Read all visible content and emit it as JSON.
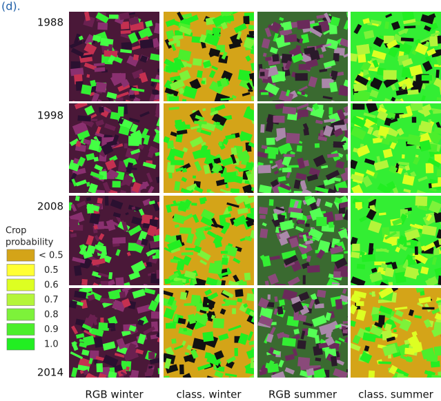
{
  "header": {
    "label": "(d)."
  },
  "years": [
    "1988",
    "1998",
    "2008",
    "2014"
  ],
  "columns": [
    "RGB winter",
    "class. winter",
    "RGB summer",
    "class. summer"
  ],
  "legend": {
    "title": [
      "Crop",
      "probability"
    ],
    "items": [
      {
        "label": "< 0.5",
        "color": "#d4a418"
      },
      {
        "label": "0.5",
        "color": "#ffff33"
      },
      {
        "label": "0.6",
        "color": "#ddff22"
      },
      {
        "label": "0.7",
        "color": "#b4f53a"
      },
      {
        "label": "0.8",
        "color": "#7df23a"
      },
      {
        "label": "0.9",
        "color": "#4cee2c"
      },
      {
        "label": "1.0",
        "color": "#22ee22"
      }
    ]
  }
}
